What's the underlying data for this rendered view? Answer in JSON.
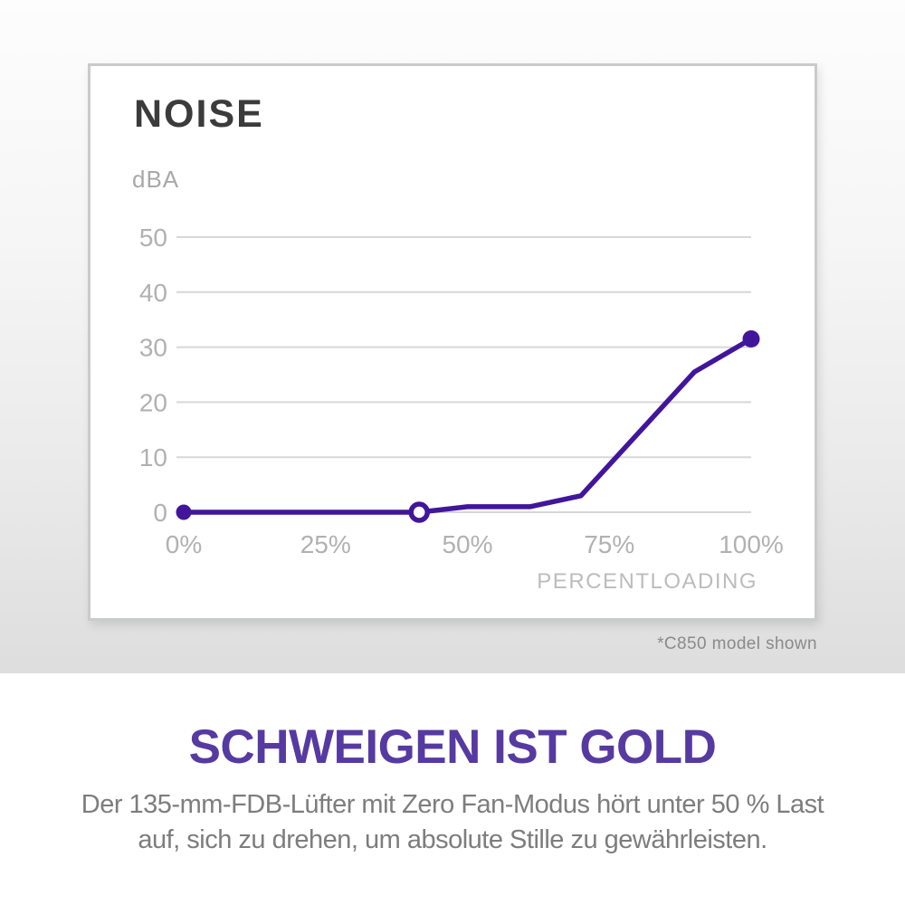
{
  "hero": {
    "card": {
      "title": "NOISE"
    },
    "footnote": "*C850 model shown"
  },
  "chart_data": {
    "type": "line",
    "title": "NOISE",
    "ylabel": "dBA",
    "xlabel": "PERCENTLOADING",
    "x_tick_labels": [
      "0%",
      "25%",
      "50%",
      "75%",
      "100%"
    ],
    "x_tick_values": [
      0,
      25,
      50,
      75,
      100
    ],
    "y_ticks": [
      50,
      40,
      30,
      20,
      10,
      0
    ],
    "xlim": [
      0,
      100
    ],
    "ylim": [
      0,
      50
    ],
    "grid": true,
    "legend": "none",
    "series": [
      {
        "name": "noise-dba-vs-percent-loading",
        "color": "#41169B",
        "points": [
          {
            "x": 0,
            "y": 0
          },
          {
            "x": 41.5,
            "y": 0
          },
          {
            "x": 50,
            "y": 1
          },
          {
            "x": 61,
            "y": 1
          },
          {
            "x": 70,
            "y": 3
          },
          {
            "x": 90,
            "y": 25.5
          },
          {
            "x": 100,
            "y": 31.5
          }
        ]
      }
    ],
    "markers": [
      {
        "x": 0,
        "y": 0,
        "style": "filled",
        "meaning": "start point"
      },
      {
        "x": 41.5,
        "y": 0,
        "style": "open",
        "meaning": "zero-fan threshold"
      },
      {
        "x": 100,
        "y": 31.5,
        "style": "filled",
        "meaning": "end point"
      }
    ]
  },
  "footer": {
    "headline": "SCHWEIGEN IST GOLD",
    "body_line1": "Der 135-mm-FDB-Lüfter mit Zero Fan-Modus hört unter 50 % Last",
    "body_line2": "auf, sich zu drehen, um absolute Stille zu gewährleisten."
  },
  "colors": {
    "line": "#41169B",
    "headline": "#563AA2",
    "chart_title": "#3b3b3b",
    "axis_tick_text": "#b1b1b1",
    "axis_unit_text": "#a8a8a8",
    "axis_label_text": "#bcbcbc",
    "gridline": "#d7d7d7",
    "footnote_text": "#8a8a8a",
    "body_text": "#7d7d7d",
    "card_background": "#ffffff",
    "card_border": "#c9cccb"
  }
}
